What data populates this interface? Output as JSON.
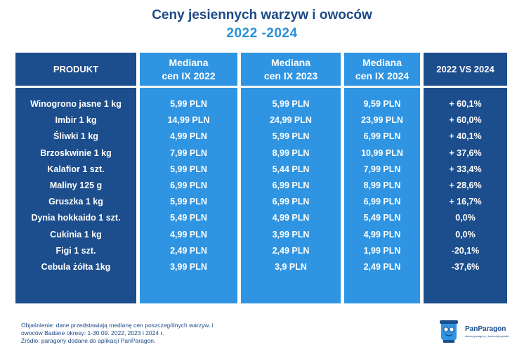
{
  "title": "Ceny jesiennych warzyw i owoców",
  "subtitle": "2022 -2024",
  "chart_data": {
    "type": "table",
    "columns": [
      "PRODUKT",
      "Mediana\ncen IX 2022",
      "Mediana\ncen IX 2023",
      "Mediana\ncen IX 2024",
      "2022 VS 2024"
    ],
    "rows": [
      [
        "Winogrono jasne 1 kg",
        "5,99 PLN",
        "5,99 PLN",
        "9,59 PLN",
        "+ 60,1%"
      ],
      [
        "Imbir 1 kg",
        "14,99 PLN",
        "24,99 PLN",
        "23,99 PLN",
        "+ 60,0%"
      ],
      [
        "Śliwki 1 kg",
        "4,99 PLN",
        "5,99 PLN",
        "6,99 PLN",
        "+ 40,1%"
      ],
      [
        "Brzoskwinie 1 kg",
        "7,99 PLN",
        "8,99 PLN",
        "10,99 PLN",
        "+ 37,6%"
      ],
      [
        "Kalafior 1 szt.",
        "5,99 PLN",
        "5,44 PLN",
        "7,99 PLN",
        "+ 33,4%"
      ],
      [
        "Maliny 125 g",
        "6,99 PLN",
        "6,99 PLN",
        "8,99 PLN",
        "+ 28,6%"
      ],
      [
        "Gruszka 1 kg",
        "5,99 PLN",
        "6,99 PLN",
        "6,99 PLN",
        "+ 16,7%"
      ],
      [
        "Dynia hokkaido 1 szt.",
        "5,49 PLN",
        "4,99 PLN",
        "5,49 PLN",
        "0,0%"
      ],
      [
        "Cukinia 1 kg",
        "4,99 PLN",
        "3,99 PLN",
        "4,99 PLN",
        "0,0%"
      ],
      [
        "Figi 1 szt.",
        "2,49 PLN",
        "2,49 PLN",
        "1,99 PLN",
        "-20,1%"
      ],
      [
        "Cebula żółta 1kg",
        "3,99 PLN",
        "3,9 PLN",
        "2,49 PLN",
        "-37,6%"
      ]
    ]
  },
  "footnote": {
    "line1": "Objaśnienie: dane przedstawiają medianę cen poszczególnych warzyw. i",
    "line2": "owoców Badane okresy: 1-30.09. 2022, 2023 i 2024 r.",
    "line3": "Źródło: paragony dodane do aplikacji PanParagon."
  },
  "logo": {
    "name": "PanParagon",
    "tagline": "zbieraj paragony | kontroluj wydatki"
  },
  "colors": {
    "dark_blue": "#1c4d8c",
    "light_blue": "#2f95e2",
    "title_blue": "#1c4a86",
    "subtitle_blue": "#2a8fd8"
  }
}
